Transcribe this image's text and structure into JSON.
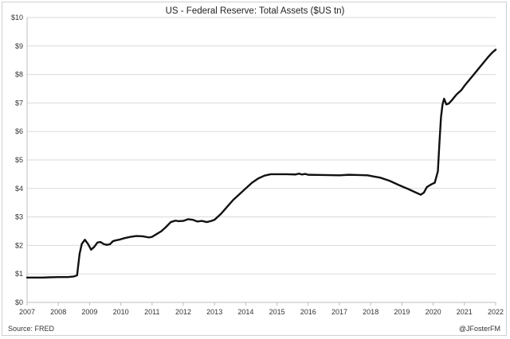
{
  "chart_data": {
    "type": "line",
    "title": "US - Federal Reserve: Total Assets ($US tn)",
    "xlabel": "",
    "ylabel": "",
    "xlim": [
      2007,
      2022
    ],
    "ylim": [
      0,
      10
    ],
    "grid": true,
    "legend": "none",
    "x_tick_labels": [
      "2007",
      "2008",
      "2009",
      "2010",
      "2011",
      "2012",
      "2013",
      "2014",
      "2015",
      "2016",
      "2017",
      "2018",
      "2019",
      "2020",
      "2021",
      "2022"
    ],
    "y_tick_labels": [
      "$0",
      "$1",
      "$2",
      "$3",
      "$4",
      "$5",
      "$6",
      "$7",
      "$8",
      "$9",
      "$10"
    ],
    "series_color": "#111111",
    "series": [
      {
        "x": [
          2007.0,
          2007.5,
          2007.7,
          2008.0,
          2008.3,
          2008.5,
          2008.6,
          2008.68,
          2008.75,
          2008.85,
          2008.95,
          2009.05,
          2009.15,
          2009.25,
          2009.35,
          2009.45,
          2009.55,
          2009.65,
          2009.75,
          2009.85,
          2009.95,
          2010.1,
          2010.3,
          2010.5,
          2010.7,
          2010.9,
          2011.0,
          2011.15,
          2011.3,
          2011.45,
          2011.6,
          2011.75,
          2011.85,
          2012.0,
          2012.15,
          2012.3,
          2012.45,
          2012.6,
          2012.75,
          2012.9,
          2013.0,
          2013.2,
          2013.4,
          2013.6,
          2013.8,
          2014.0,
          2014.2,
          2014.4,
          2014.6,
          2014.8,
          2015.0,
          2015.3,
          2015.6,
          2015.7,
          2015.8,
          2015.9,
          2016.0,
          2016.5,
          2017.0,
          2017.3,
          2017.6,
          2017.9,
          2018.1,
          2018.3,
          2018.6,
          2018.9,
          2019.2,
          2019.4,
          2019.6,
          2019.7,
          2019.8,
          2019.95,
          2020.05,
          2020.15,
          2020.2,
          2020.25,
          2020.3,
          2020.35,
          2020.42,
          2020.5,
          2020.6,
          2020.75,
          2020.9,
          2021.0,
          2021.15,
          2021.3,
          2021.45,
          2021.6,
          2021.75,
          2021.9,
          2022.0
        ],
        "values": [
          0.87,
          0.87,
          0.88,
          0.89,
          0.89,
          0.91,
          0.95,
          1.7,
          2.05,
          2.2,
          2.05,
          1.85,
          1.95,
          2.1,
          2.12,
          2.05,
          2.02,
          2.04,
          2.15,
          2.18,
          2.2,
          2.25,
          2.3,
          2.33,
          2.32,
          2.28,
          2.3,
          2.4,
          2.5,
          2.65,
          2.82,
          2.87,
          2.85,
          2.86,
          2.92,
          2.9,
          2.84,
          2.86,
          2.82,
          2.86,
          2.9,
          3.1,
          3.35,
          3.6,
          3.8,
          4.0,
          4.2,
          4.35,
          4.45,
          4.5,
          4.5,
          4.5,
          4.49,
          4.52,
          4.49,
          4.51,
          4.48,
          4.47,
          4.46,
          4.48,
          4.47,
          4.46,
          4.42,
          4.38,
          4.27,
          4.12,
          3.98,
          3.88,
          3.78,
          3.85,
          4.05,
          4.15,
          4.2,
          4.6,
          5.6,
          6.5,
          6.95,
          7.15,
          6.95,
          6.98,
          7.1,
          7.3,
          7.45,
          7.6,
          7.8,
          8.0,
          8.2,
          8.4,
          8.6,
          8.78,
          8.87
        ]
      }
    ]
  },
  "footer": {
    "source": "Source: FRED",
    "credit": "@JFosterFM"
  }
}
